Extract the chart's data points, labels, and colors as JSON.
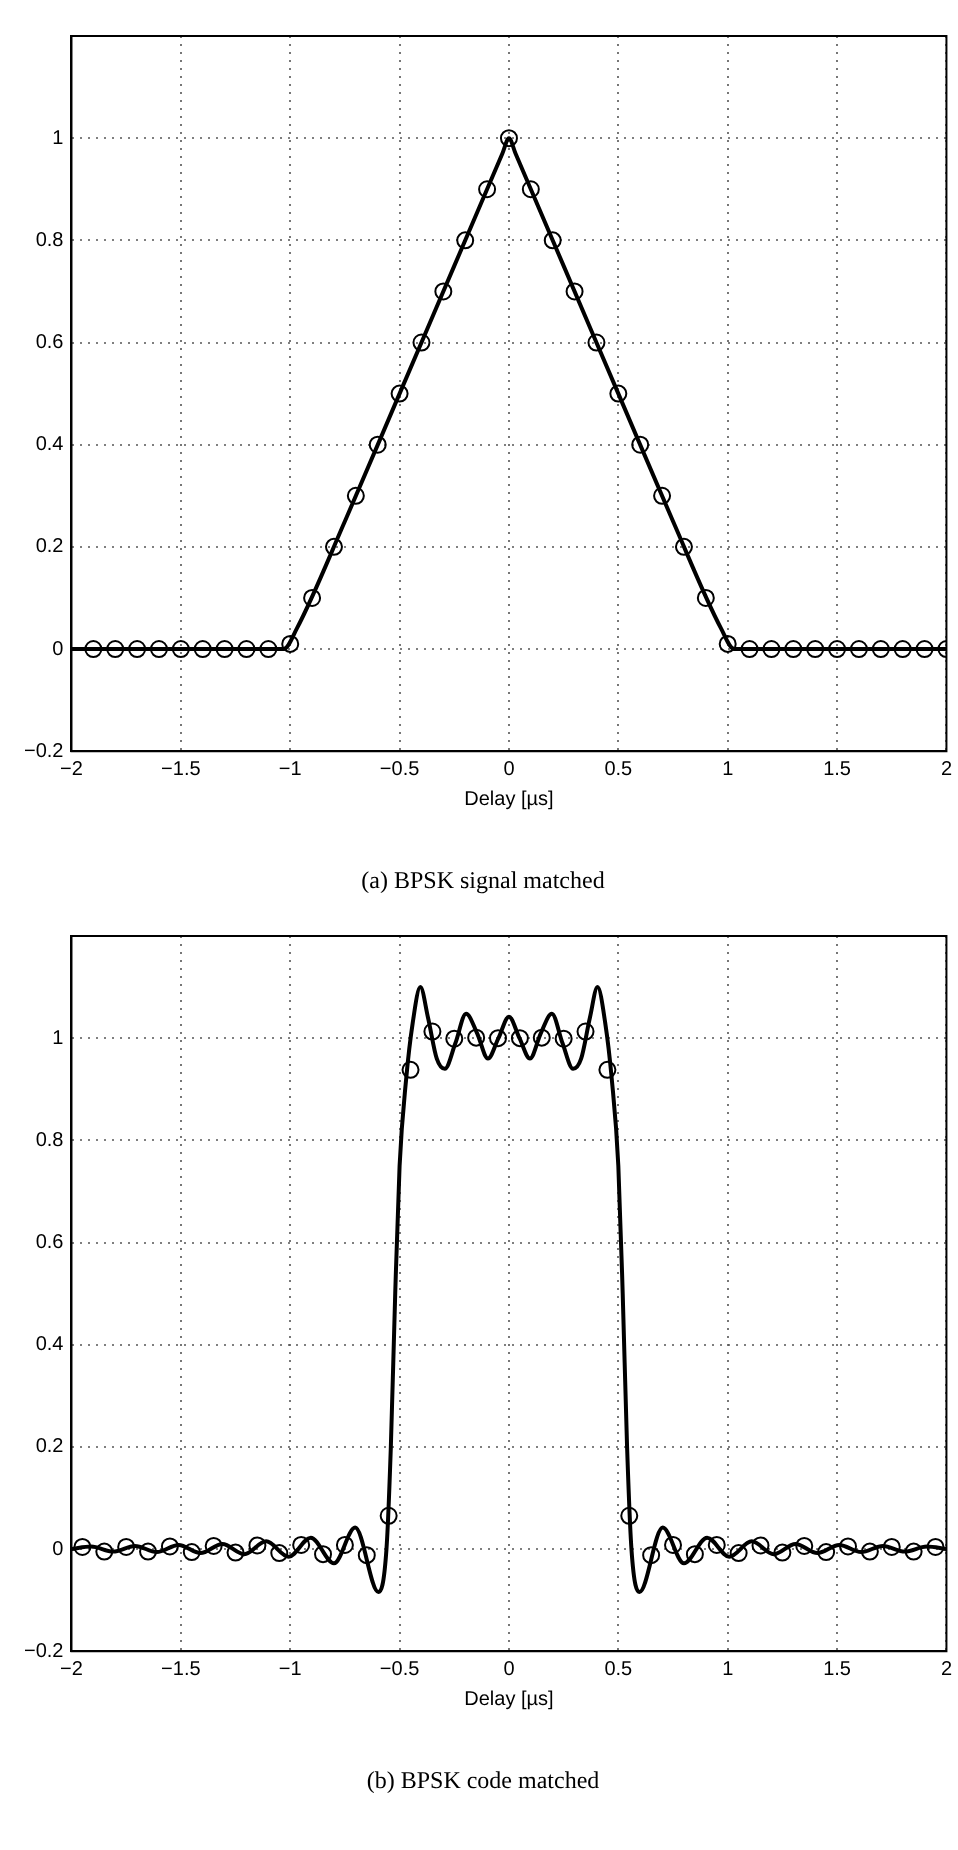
{
  "chart_data": [
    {
      "type": "line",
      "title": "(a) BPSK signal matched",
      "xlabel": "Delay [µs]",
      "xlim": [
        -2,
        2
      ],
      "ylim": [
        -0.2,
        1.2
      ],
      "xticks": [
        -2,
        -1.5,
        -1,
        -0.5,
        0,
        0.5,
        1,
        1.5,
        2
      ],
      "yticks": [
        -0.2,
        0,
        0.2,
        0.4,
        0.6,
        0.8,
        1
      ],
      "grid": true,
      "legend": false,
      "series": [
        {
          "type": "line",
          "color": "#000000",
          "marker": "none",
          "x": [
            -2,
            -1.03,
            -0.97,
            -0.75,
            -0.5,
            -0.25,
            -0.03,
            0,
            0.03,
            0.25,
            0.5,
            0.75,
            0.97,
            1.03,
            2
          ],
          "values": [
            0,
            0,
            0.04,
            0.25,
            0.5,
            0.75,
            0.97,
            1,
            0.97,
            0.75,
            0.5,
            0.25,
            0.04,
            0,
            0
          ]
        },
        {
          "type": "scatter",
          "color": "#000000",
          "marker": "circle",
          "x": [
            -1.9,
            -1.8,
            -1.7,
            -1.6,
            -1.5,
            -1.4,
            -1.3,
            -1.2,
            -1.1,
            -1,
            -0.9,
            -0.8,
            -0.7,
            -0.6,
            -0.5,
            -0.4,
            -0.3,
            -0.2,
            -0.1,
            0,
            0.1,
            0.2,
            0.3,
            0.4,
            0.5,
            0.6,
            0.7,
            0.8,
            0.9,
            1,
            1.1,
            1.2,
            1.3,
            1.4,
            1.5,
            1.6,
            1.7,
            1.8,
            1.9,
            2
          ],
          "values": [
            0,
            0,
            0,
            0,
            0,
            0,
            0,
            0,
            0,
            0.01,
            0.1,
            0.2,
            0.3,
            0.4,
            0.5,
            0.6,
            0.7,
            0.8,
            0.9,
            1,
            0.9,
            0.8,
            0.7,
            0.6,
            0.5,
            0.4,
            0.3,
            0.2,
            0.1,
            0.01,
            0,
            0,
            0,
            0,
            0,
            0,
            0,
            0,
            0,
            0
          ]
        }
      ]
    },
    {
      "type": "line",
      "title": "(b) BPSK code matched",
      "xlabel": "Delay [µs]",
      "xlim": [
        -2,
        2
      ],
      "ylim": [
        -0.2,
        1.2
      ],
      "xticks": [
        -2,
        -1.5,
        -1,
        -0.5,
        0,
        0.5,
        1,
        1.5,
        2
      ],
      "yticks": [
        -0.2,
        0,
        0.2,
        0.4,
        0.6,
        0.8,
        1
      ],
      "grid": true,
      "legend": false,
      "series": [
        {
          "type": "line",
          "color": "#000000",
          "marker": "none",
          "x": [
            -2,
            -1.91,
            -1.81,
            -1.71,
            -1.61,
            -1.51,
            -1.41,
            -1.31,
            -1.21,
            -1.11,
            -1.007,
            -0.906,
            -0.8,
            -0.703,
            -0.597,
            -0.56,
            -0.54,
            -0.52,
            -0.5,
            -0.47,
            -0.44,
            -0.405,
            -0.37,
            -0.33,
            -0.293,
            -0.245,
            -0.196,
            -0.146,
            -0.096,
            -0.048,
            0,
            0.048,
            0.096,
            0.146,
            0.196,
            0.245,
            0.293,
            0.33,
            0.37,
            0.405,
            0.44,
            0.47,
            0.5,
            0.52,
            0.54,
            0.56,
            0.597,
            0.703,
            0.8,
            0.906,
            1.007,
            1.11,
            1.21,
            1.31,
            1.41,
            1.51,
            1.61,
            1.71,
            1.81,
            1.91,
            2
          ],
          "values": [
            0,
            0.005,
            -0.005,
            0.006,
            -0.006,
            0.008,
            -0.008,
            0.01,
            -0.01,
            0.015,
            -0.015,
            0.022,
            -0.028,
            0.042,
            -0.084,
            0,
            0.2,
            0.5,
            0.75,
            0.92,
            1.03,
            1.1,
            1.04,
            0.96,
            0.94,
            0.99,
            1.048,
            1.01,
            0.96,
            1,
            1.042,
            1,
            0.96,
            1.01,
            1.048,
            0.99,
            0.94,
            0.96,
            1.04,
            1.1,
            1.03,
            0.92,
            0.75,
            0.5,
            0.2,
            0,
            -0.084,
            0.042,
            -0.028,
            0.022,
            -0.015,
            0.015,
            -0.01,
            0.01,
            -0.008,
            0.008,
            -0.006,
            0.006,
            -0.005,
            0.005,
            0
          ]
        },
        {
          "type": "scatter",
          "color": "#000000",
          "marker": "circle",
          "x": [
            -1.95,
            -1.85,
            -1.75,
            -1.65,
            -1.55,
            -1.45,
            -1.35,
            -1.25,
            -1.15,
            -1.05,
            -0.95,
            -0.85,
            -0.75,
            -0.65,
            -0.55,
            -0.45,
            -0.35,
            -0.25,
            -0.15,
            -0.05,
            0.05,
            0.15,
            0.25,
            0.35,
            0.45,
            0.55,
            0.65,
            0.75,
            0.85,
            0.95,
            1.05,
            1.15,
            1.25,
            1.35,
            1.45,
            1.55,
            1.65,
            1.75,
            1.85,
            1.95
          ],
          "values": [
            0.004,
            -0.005,
            0.004,
            -0.005,
            0.005,
            -0.006,
            0.006,
            -0.007,
            0.007,
            -0.008,
            0.008,
            -0.01,
            0.008,
            -0.012,
            0.065,
            0.938,
            1.013,
            0.999,
            1.001,
            1,
            1,
            1.001,
            0.999,
            1.013,
            0.938,
            0.065,
            -0.012,
            0.008,
            -0.01,
            0.008,
            -0.008,
            0.007,
            -0.007,
            0.006,
            -0.006,
            0.005,
            -0.005,
            0.004,
            -0.005,
            0.004
          ]
        }
      ]
    }
  ]
}
